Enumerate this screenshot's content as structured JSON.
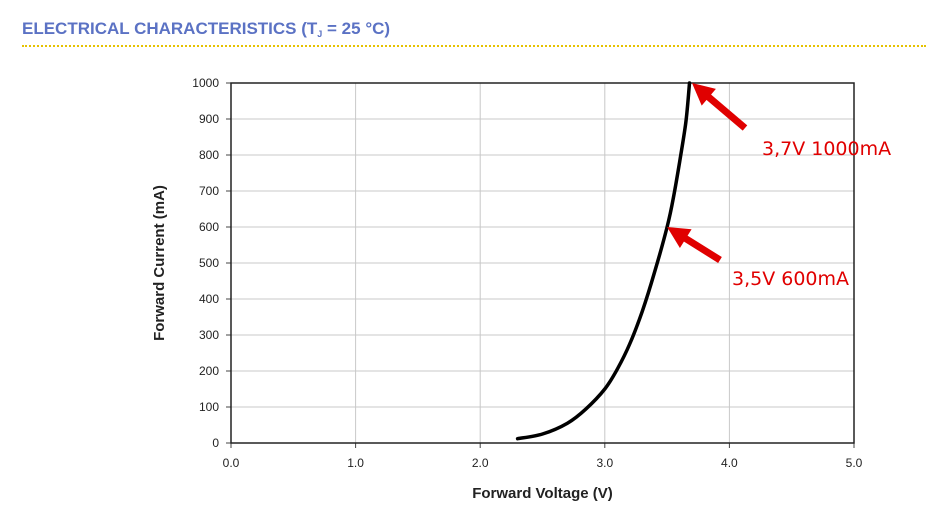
{
  "header": {
    "title_prefix": "ELECTRICAL CHARACTERISTICS (T",
    "title_sub": "J",
    "title_suffix": " = 25 °C)",
    "title_color": "#5b72c4",
    "rule_color": "#e6c200"
  },
  "chart_data": {
    "type": "line",
    "title": "",
    "xlabel": "Forward Voltage (V)",
    "ylabel": "Forward Current (mA)",
    "xlim": [
      0,
      5
    ],
    "ylim": [
      0,
      1000
    ],
    "xticks": [
      0,
      1,
      2,
      3,
      4,
      5
    ],
    "xtick_labels": [
      "0.0",
      "1.0",
      "2.0",
      "3.0",
      "4.0",
      "5.0"
    ],
    "yticks": [
      0,
      100,
      200,
      300,
      400,
      500,
      600,
      700,
      800,
      900,
      1000
    ],
    "ytick_labels": [
      "0",
      "100",
      "200",
      "300",
      "400",
      "500",
      "600",
      "700",
      "800",
      "900",
      "1000"
    ],
    "grid": true,
    "series": [
      {
        "color": "#000000",
        "x": [
          2.3,
          2.5,
          2.7,
          2.85,
          3.0,
          3.1,
          3.2,
          3.3,
          3.4,
          3.5,
          3.55,
          3.6,
          3.65,
          3.68
        ],
        "y": [
          12,
          25,
          55,
          95,
          150,
          205,
          275,
          365,
          475,
          600,
          680,
          780,
          890,
          1000
        ]
      }
    ],
    "annotations": [
      {
        "text": "3,7V 1000mA",
        "x": 3.7,
        "y": 1000,
        "color": "#e00000"
      },
      {
        "text": "3,5V 600mA",
        "x": 3.5,
        "y": 600,
        "color": "#e00000"
      }
    ]
  }
}
